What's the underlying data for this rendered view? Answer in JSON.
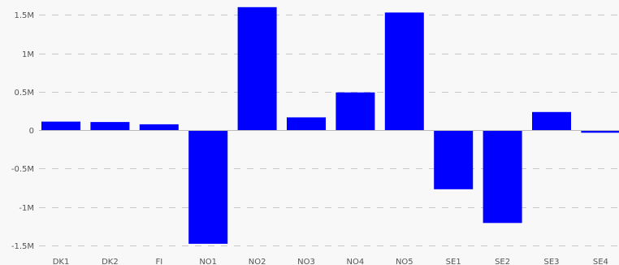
{
  "chart_data": {
    "type": "bar",
    "title": "",
    "xlabel": "",
    "ylabel": "",
    "categories": [
      "DK1",
      "DK2",
      "FI",
      "NO1",
      "NO2",
      "NO3",
      "NO4",
      "NO5",
      "SE1",
      "SE2",
      "SE3",
      "SE4"
    ],
    "values": [
      110000,
      105000,
      75000,
      -1480000,
      1600000,
      165000,
      490000,
      1530000,
      -770000,
      -1210000,
      235000,
      -35000
    ],
    "ylim": [
      -1560000,
      1600000
    ],
    "yticks": [
      {
        "value": 1500000,
        "label": "1.5M"
      },
      {
        "value": 1000000,
        "label": "1M"
      },
      {
        "value": 500000,
        "label": "0.5M"
      },
      {
        "value": 0,
        "label": "0"
      },
      {
        "value": -500000,
        "label": "-0.5M"
      },
      {
        "value": -1000000,
        "label": "-1M"
      },
      {
        "value": -1500000,
        "label": "-1.5M"
      }
    ],
    "grid": true,
    "legend": "none",
    "bar_color": "#0000ff",
    "grid_color": "#c8c8c8",
    "background_color": "#f8f8f8"
  }
}
